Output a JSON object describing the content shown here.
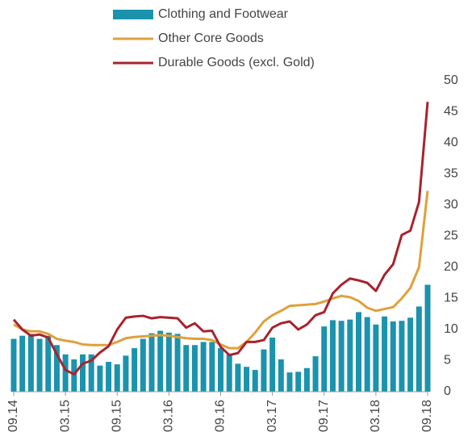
{
  "chart_data": {
    "type": "combo",
    "categories": [
      "09.14",
      null,
      null,
      null,
      null,
      null,
      "03.15",
      null,
      null,
      null,
      null,
      null,
      "09.15",
      null,
      null,
      null,
      null,
      null,
      "03.16",
      null,
      null,
      null,
      null,
      null,
      "09.16",
      null,
      null,
      null,
      null,
      null,
      "03.17",
      null,
      null,
      null,
      null,
      null,
      "09.17",
      null,
      null,
      null,
      null,
      null,
      "03.18",
      null,
      null,
      null,
      null,
      null,
      "09.18"
    ],
    "series": [
      {
        "name": "Clothing and Footwear",
        "type": "bar",
        "color": "#1b93ad",
        "values": [
          8.5,
          9,
          9.3,
          8.5,
          9,
          7.5,
          6,
          5.2,
          6,
          6,
          4.2,
          4.8,
          4.4,
          5.8,
          7,
          8.5,
          9.4,
          9.8,
          9.5,
          9.3,
          7.5,
          7.5,
          8,
          8,
          7,
          6,
          4.5,
          4,
          3.5,
          6.8,
          8.7,
          5.2,
          3.1,
          3.2,
          3.8,
          5.7,
          10.5,
          11.5,
          11.4,
          11.6,
          12.8,
          12,
          10.8,
          12.1,
          11.3,
          11.4,
          11.9,
          13.7,
          17.2
        ]
      },
      {
        "name": "Other Core Goods",
        "type": "line",
        "color": "#dfa03c",
        "values": [
          10.8,
          10,
          9.7,
          9.7,
          9.3,
          8.5,
          8.2,
          8,
          7.6,
          7.5,
          7.5,
          7.5,
          8,
          8.6,
          8.8,
          8.9,
          9,
          9.1,
          9,
          8.8,
          8.6,
          8.5,
          8.5,
          8.3,
          7.6,
          7,
          7,
          8,
          9.5,
          11.3,
          12.3,
          13,
          13.8,
          13.9,
          14,
          14.1,
          14.5,
          15,
          15.4,
          15.2,
          14.6,
          13.5,
          13,
          13.3,
          13.6,
          15,
          16.7,
          20,
          32.3
        ]
      },
      {
        "name": "Durable Goods (excl. Gold)",
        "type": "line",
        "color": "#a8232e",
        "values": [
          11.6,
          10,
          9,
          9.2,
          8.7,
          6,
          3.5,
          2.8,
          4.5,
          5,
          6.3,
          7.3,
          10,
          11.9,
          12.1,
          12.2,
          11.8,
          12,
          11.9,
          11.8,
          10.3,
          11,
          9.7,
          9.8,
          7.2,
          5.9,
          6.2,
          8,
          8,
          8.3,
          10.3,
          11,
          11.3,
          10,
          10.8,
          12.3,
          12.8,
          15.8,
          17.2,
          18.2,
          17.9,
          17.5,
          16.2,
          18.8,
          20.5,
          25.2,
          25.9,
          30.5,
          46.6
        ]
      }
    ],
    "ylim": [
      0,
      50
    ],
    "yticks": [
      0,
      5,
      10,
      15,
      20,
      25,
      30,
      35,
      40,
      45,
      50
    ],
    "yaxis_side": "right",
    "legend": "top"
  }
}
